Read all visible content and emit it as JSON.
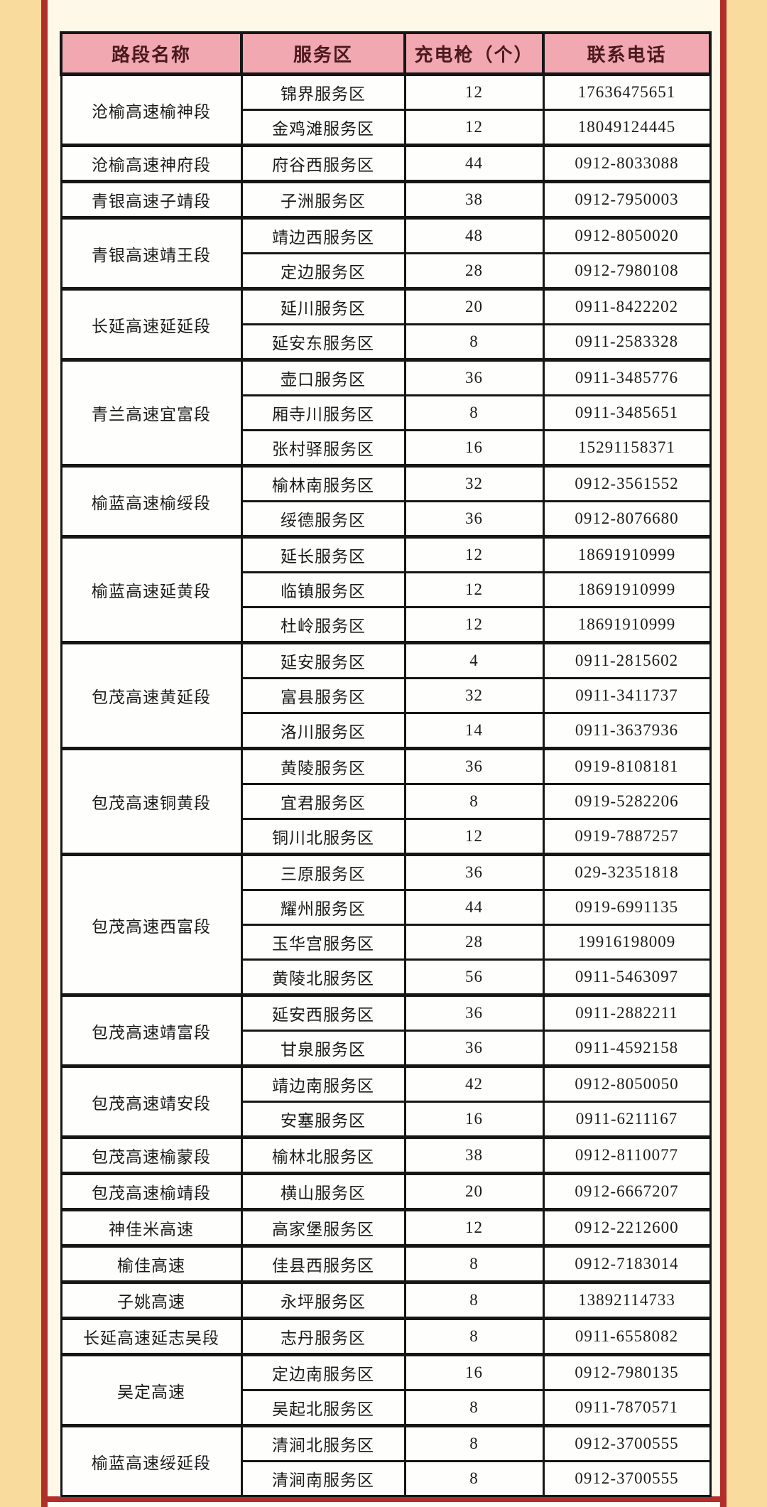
{
  "page": {
    "background_color": "#FDF8E8",
    "side_margin_color": "#F8DB9D",
    "frame_color": "#B22E2B",
    "header_bg_color": "#F2A8B0",
    "header_text_color": "#4A191C",
    "border_color": "#161616"
  },
  "table": {
    "headers": [
      "路段名称",
      "服务区",
      "充电枪（个）",
      "联系电话"
    ],
    "groups": [
      {
        "section": "沧榆高速榆神段",
        "rows": [
          [
            "锦界服务区",
            "12",
            "17636475651"
          ],
          [
            "金鸡滩服务区",
            "12",
            "18049124445"
          ]
        ]
      },
      {
        "section": "沧榆高速神府段",
        "rows": [
          [
            "府谷西服务区",
            "44",
            "0912-8033088"
          ]
        ]
      },
      {
        "section": "青银高速子靖段",
        "rows": [
          [
            "子洲服务区",
            "38",
            "0912-7950003"
          ]
        ]
      },
      {
        "section": "青银高速靖王段",
        "rows": [
          [
            "靖边西服务区",
            "48",
            "0912-8050020"
          ],
          [
            "定边服务区",
            "28",
            "0912-7980108"
          ]
        ]
      },
      {
        "section": "长延高速延延段",
        "rows": [
          [
            "延川服务区",
            "20",
            "0911-8422202"
          ],
          [
            "延安东服务区",
            "8",
            "0911-2583328"
          ]
        ]
      },
      {
        "section": "青兰高速宜富段",
        "rows": [
          [
            "壶口服务区",
            "36",
            "0911-3485776"
          ],
          [
            "厢寺川服务区",
            "8",
            "0911-3485651"
          ],
          [
            "张村驿服务区",
            "16",
            "15291158371"
          ]
        ]
      },
      {
        "section": "榆蓝高速榆绥段",
        "rows": [
          [
            "榆林南服务区",
            "32",
            "0912-3561552"
          ],
          [
            "绥德服务区",
            "36",
            "0912-8076680"
          ]
        ]
      },
      {
        "section": "榆蓝高速延黄段",
        "rows": [
          [
            "延长服务区",
            "12",
            "18691910999"
          ],
          [
            "临镇服务区",
            "12",
            "18691910999"
          ],
          [
            "杜岭服务区",
            "12",
            "18691910999"
          ]
        ]
      },
      {
        "section": "包茂高速黄延段",
        "rows": [
          [
            "延安服务区",
            "4",
            "0911-2815602"
          ],
          [
            "富县服务区",
            "32",
            "0911-3411737"
          ],
          [
            "洛川服务区",
            "14",
            "0911-3637936"
          ]
        ]
      },
      {
        "section": "包茂高速铜黄段",
        "rows": [
          [
            "黄陵服务区",
            "36",
            "0919-8108181"
          ],
          [
            "宜君服务区",
            "8",
            "0919-5282206"
          ],
          [
            "铜川北服务区",
            "12",
            "0919-7887257"
          ]
        ]
      },
      {
        "section": "包茂高速西富段",
        "rows": [
          [
            "三原服务区",
            "36",
            "029-32351818"
          ],
          [
            "耀州服务区",
            "44",
            "0919-6991135"
          ],
          [
            "玉华宫服务区",
            "28",
            "19916198009"
          ],
          [
            "黄陵北服务区",
            "56",
            "0911-5463097"
          ]
        ]
      },
      {
        "section": "包茂高速靖富段",
        "rows": [
          [
            "延安西服务区",
            "36",
            "0911-2882211"
          ],
          [
            "甘泉服务区",
            "36",
            "0911-4592158"
          ]
        ]
      },
      {
        "section": "包茂高速靖安段",
        "rows": [
          [
            "靖边南服务区",
            "42",
            "0912-8050050"
          ],
          [
            "安塞服务区",
            "16",
            "0911-6211167"
          ]
        ]
      },
      {
        "section": "包茂高速榆蒙段",
        "rows": [
          [
            "榆林北服务区",
            "38",
            "0912-8110077"
          ]
        ]
      },
      {
        "section": "包茂高速榆靖段",
        "rows": [
          [
            "横山服务区",
            "20",
            "0912-6667207"
          ]
        ]
      },
      {
        "section": "神佳米高速",
        "rows": [
          [
            "高家堡服务区",
            "12",
            "0912-2212600"
          ]
        ]
      },
      {
        "section": "榆佳高速",
        "rows": [
          [
            "佳县西服务区",
            "8",
            "0912-7183014"
          ]
        ]
      },
      {
        "section": "子姚高速",
        "rows": [
          [
            "永坪服务区",
            "8",
            "13892114733"
          ]
        ]
      },
      {
        "section": "长延高速延志吴段",
        "rows": [
          [
            "志丹服务区",
            "8",
            "0911-6558082"
          ]
        ]
      },
      {
        "section": "吴定高速",
        "rows": [
          [
            "定边南服务区",
            "16",
            "0912-7980135"
          ],
          [
            "吴起北服务区",
            "8",
            "0911-7870571"
          ]
        ]
      },
      {
        "section": "榆蓝高速绥延段",
        "rows": [
          [
            "清涧北服务区",
            "8",
            "0912-3700555"
          ],
          [
            "清涧南服务区",
            "8",
            "0912-3700555"
          ]
        ]
      }
    ]
  }
}
